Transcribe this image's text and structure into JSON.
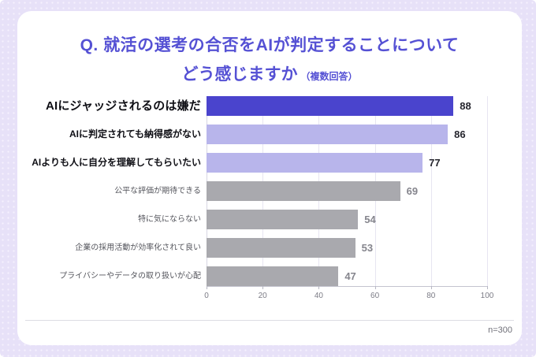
{
  "title": {
    "line1": "Q. 就活の選考の合否をAIが判定することについて",
    "line2": "どう感じますか",
    "note": "（複数回答）",
    "color": "#5551d4"
  },
  "chart_data": {
    "type": "bar",
    "orientation": "horizontal",
    "categories": [
      "AIにジャッジされるのは嫌だ",
      "AIに判定されても納得感がない",
      "AIよりも人に自分を理解してもらいたい",
      "公平な評価が期待できる",
      "特に気にならない",
      "企業の採用活動が効率化されて良い",
      "プライバシーやデータの取り扱いが心配"
    ],
    "values": [
      88,
      86,
      77,
      69,
      54,
      53,
      47
    ],
    "bar_colors": [
      "#4a44cd",
      "#b8b5eb",
      "#b8b5eb",
      "#a9a9ae",
      "#a9a9ae",
      "#a9a9ae",
      "#a9a9ae"
    ],
    "emphasis": [
      "high",
      "medium",
      "medium",
      "low",
      "low",
      "low",
      "low"
    ],
    "value_label_styles": [
      "dark",
      "dark",
      "dark",
      "gray",
      "gray",
      "gray",
      "gray"
    ],
    "xlim": [
      0,
      100
    ],
    "x_ticks": [
      0,
      20,
      40,
      60,
      80,
      100
    ],
    "grid": true,
    "legend": false,
    "title": "",
    "xlabel": "",
    "ylabel": ""
  },
  "footer": {
    "sample_size": "n=300"
  },
  "colors": {
    "background": "#e7e1f8",
    "card": "#ffffff",
    "accent": "#5551d4",
    "bar_primary": "#4a44cd",
    "bar_secondary": "#b8b5eb",
    "bar_neutral": "#a9a9ae"
  }
}
